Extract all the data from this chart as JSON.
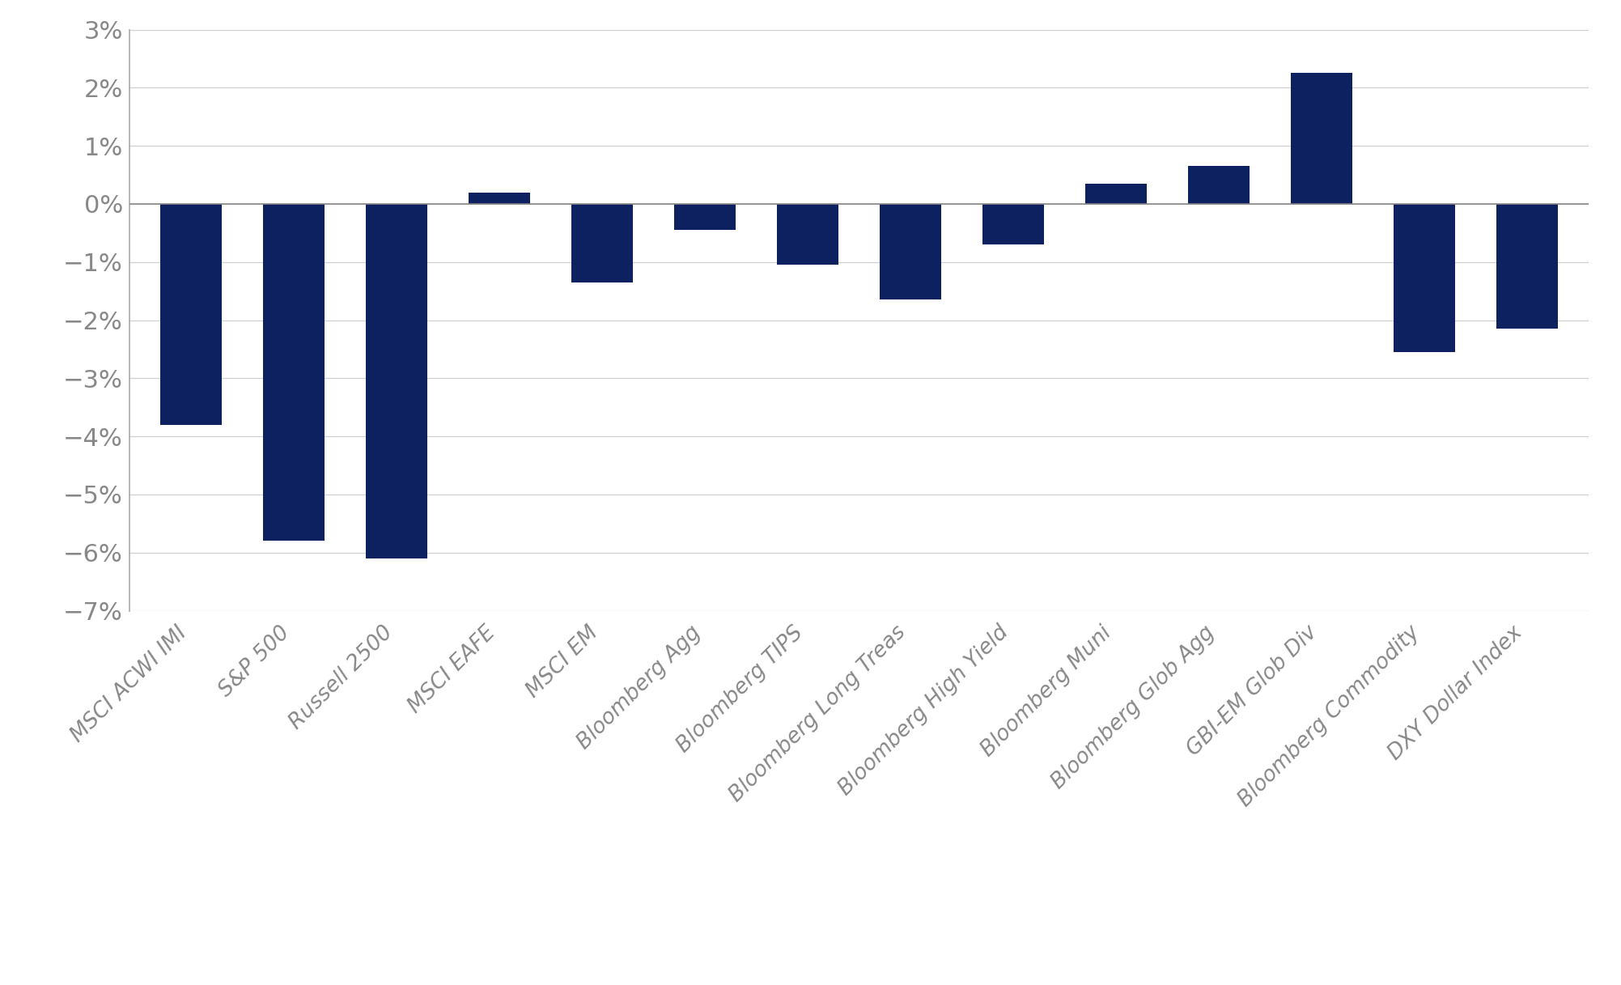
{
  "categories": [
    "MSCI ACWI IMI",
    "S&P 500",
    "Russell 2500",
    "MSCI EAFE",
    "MSCI EM",
    "Bloomberg Agg",
    "Bloomberg TIPS",
    "Bloomberg Long Treas",
    "Bloomberg High Yield",
    "Bloomberg Muni",
    "Bloomberg Glob Agg",
    "GBI-EM Glob Div",
    "Bloomberg Commodity",
    "DXY Dollar Index"
  ],
  "values": [
    -3.8,
    -5.8,
    -6.1,
    0.2,
    -1.35,
    -0.45,
    -1.05,
    -1.65,
    -0.7,
    0.35,
    0.65,
    2.25,
    -2.55,
    -2.15
  ],
  "bar_color": "#0d2060",
  "background_color": "#ffffff",
  "grid_color": "#d0d0d0",
  "ytick_color": "#888888",
  "xtick_color": "#888888",
  "left_spine_color": "#aaaaaa",
  "zero_line_color": "#888888",
  "ylim": [
    -7,
    3
  ],
  "yticks": [
    -7,
    -6,
    -5,
    -4,
    -3,
    -2,
    -1,
    0,
    1,
    2,
    3
  ],
  "bar_width": 0.6,
  "ytick_fontsize": 22,
  "xtick_fontsize": 19
}
